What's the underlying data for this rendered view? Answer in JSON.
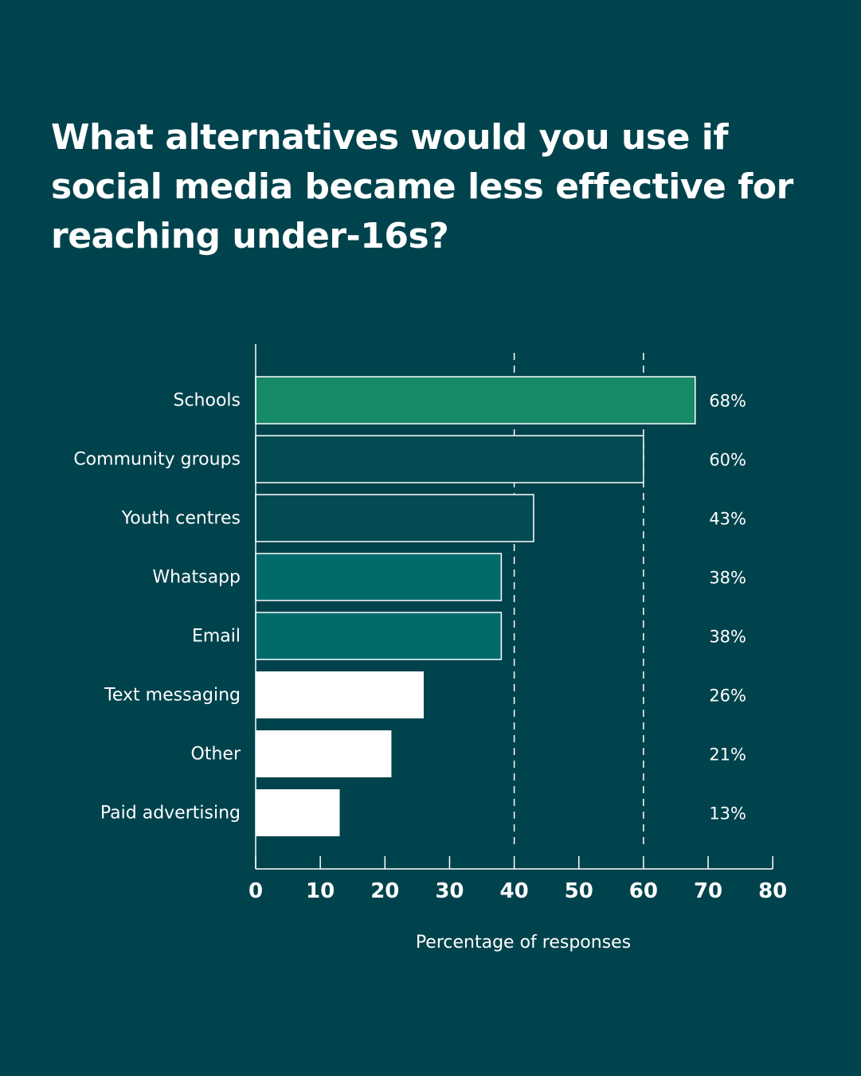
{
  "chart_data": {
    "type": "bar",
    "orientation": "horizontal",
    "title": "What alternatives would you use if social media became less effective for reaching under-16s?",
    "xlabel": "Percentage of responses",
    "ylabel": "",
    "xlim": [
      0,
      80
    ],
    "x_ticks": [
      0,
      10,
      20,
      30,
      40,
      50,
      60,
      70,
      80
    ],
    "reference_lines": [
      40,
      60
    ],
    "categories": [
      "Schools",
      "Community groups",
      "Youth centres",
      "Whatsapp",
      "Email",
      "Text messaging",
      "Other",
      "Paid advertising"
    ],
    "values": [
      68,
      60,
      43,
      38,
      38,
      26,
      21,
      13
    ],
    "value_labels": [
      "68%",
      "60%",
      "43%",
      "38%",
      "38%",
      "26%",
      "21%",
      "13%"
    ],
    "bar_colors": [
      "#178a69",
      "#034b53",
      "#034b53",
      "#016a6b",
      "#016a6b",
      "#ffffff",
      "#ffffff",
      "#ffffff"
    ],
    "grid": false,
    "legend": "none"
  },
  "colors": {
    "background": "#01434d",
    "text": "#ffffff"
  }
}
